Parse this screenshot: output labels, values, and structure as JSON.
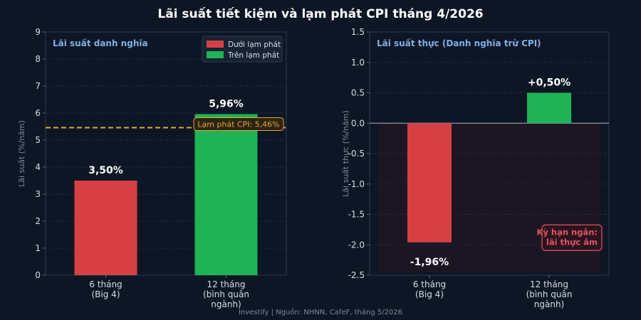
{
  "title": "Lãi suất tiết kiệm và lạm phát CPI tháng 4/2026",
  "footer": "Investify  |  Nguồn: NHNN, CafeF, tháng 5/2026",
  "colors": {
    "background": "#0d1625",
    "red": "#d64045",
    "green": "#1fb356",
    "cpi_line": "#e8a33a",
    "axis_text": "#d8dde4",
    "grid": "#1f2b3c",
    "panel_title": "#7fb0e8",
    "label": "#ffffff",
    "neg_box": "#e05561"
  },
  "chart_data": [
    {
      "type": "bar",
      "panel_title": "Lãi suất danh nghĩa",
      "categories": [
        [
          "6 tháng",
          "(Big 4)"
        ],
        [
          "12 tháng",
          "(bình quân",
          "ngành)"
        ]
      ],
      "values": [
        3.5,
        5.96
      ],
      "value_labels": [
        "3,50%",
        "5,96%"
      ],
      "bar_colors": [
        "red",
        "green"
      ],
      "ylabel": "Lãi suất (%/năm)",
      "ylim": [
        0,
        9
      ],
      "yticks": [
        "0",
        "1",
        "2",
        "3",
        "4",
        "5",
        "6",
        "7",
        "8",
        "9"
      ],
      "grid": true,
      "reference_line": {
        "value": 5.46,
        "label": "Lạm phát CPI: 5,46%"
      },
      "legend": {
        "position": "top-right",
        "items": [
          {
            "label": "Dưới lạm phát",
            "color": "red"
          },
          {
            "label": "Trên lạm phát",
            "color": "green"
          }
        ]
      }
    },
    {
      "type": "bar",
      "panel_title": "Lãi suất thực (Danh nghĩa trừ CPI)",
      "categories": [
        [
          "6 tháng",
          "(Big 4)"
        ],
        [
          "12 tháng",
          "(bình quân",
          "ngành)"
        ]
      ],
      "values": [
        -1.96,
        0.5
      ],
      "value_labels": [
        "-1,96%",
        "+0,50%"
      ],
      "bar_colors": [
        "red",
        "green"
      ],
      "ylabel": "Lãi suất thực (%/năm)",
      "ylim": [
        -2.5,
        1.5
      ],
      "yticks": [
        "-2.5",
        "-2.0",
        "-1.5",
        "-1.0",
        "-0.5",
        "0.0",
        "0.5",
        "1.0",
        "1.5"
      ],
      "grid": true,
      "negative_zone": true,
      "annotation": [
        "Kỳ hạn ngắn:",
        "lãi thực âm"
      ]
    }
  ]
}
